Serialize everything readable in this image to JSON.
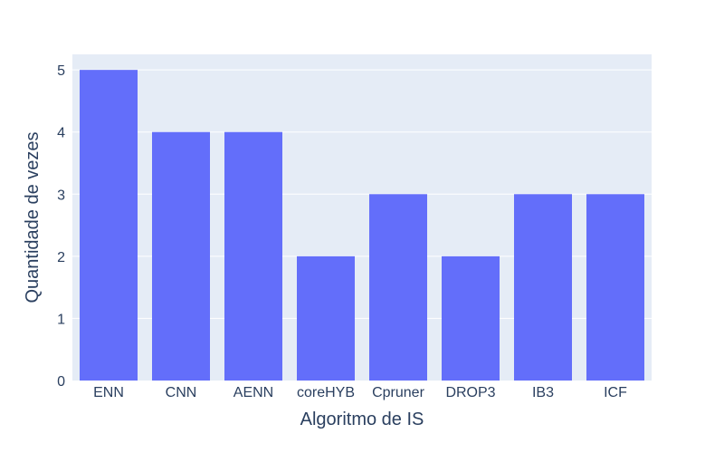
{
  "chart_data": {
    "type": "bar",
    "categories": [
      "ENN",
      "CNN",
      "AENN",
      "coreHYB",
      "Cpruner",
      "DROP3",
      "IB3",
      "ICF"
    ],
    "values": [
      5,
      4,
      4,
      2,
      3,
      2,
      3,
      3
    ],
    "title": "",
    "xlabel": "Algoritmo de IS",
    "ylabel": "Quantidade de vezes",
    "ylim": [
      0,
      5.25
    ],
    "yticks": [
      0,
      1,
      2,
      3,
      4,
      5
    ],
    "grid": true,
    "bar_color": "#636efa",
    "plot_bg": "#e5ecf6"
  }
}
